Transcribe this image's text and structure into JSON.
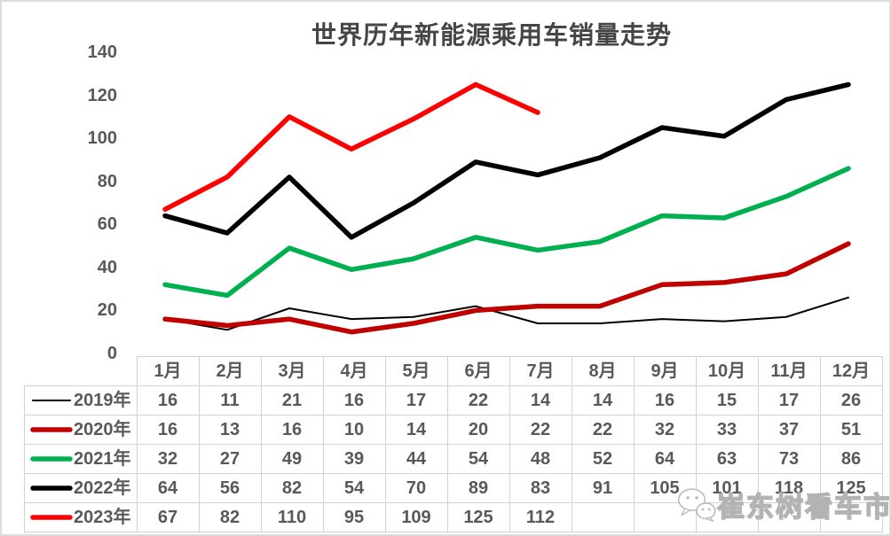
{
  "title": "世界历年新能源乘用车销量走势",
  "chart_data": {
    "type": "line",
    "title": "世界历年新能源乘用车销量走势",
    "categories": [
      "1月",
      "2月",
      "3月",
      "4月",
      "5月",
      "6月",
      "7月",
      "8月",
      "9月",
      "10月",
      "11月",
      "12月"
    ],
    "series": [
      {
        "key": "2019",
        "name": "2019年",
        "color": "#000000",
        "stroke_width": 2,
        "values": [
          16,
          11,
          21,
          16,
          17,
          22,
          14,
          14,
          16,
          15,
          17,
          26
        ]
      },
      {
        "key": "2020",
        "name": "2020年",
        "color": "#C00000",
        "stroke_width": 5.5,
        "values": [
          16,
          13,
          16,
          10,
          14,
          20,
          22,
          22,
          32,
          33,
          37,
          51
        ]
      },
      {
        "key": "2021",
        "name": "2021年",
        "color": "#00B050",
        "stroke_width": 5.5,
        "values": [
          32,
          27,
          49,
          39,
          44,
          54,
          48,
          52,
          64,
          63,
          73,
          86
        ]
      },
      {
        "key": "2022",
        "name": "2022年",
        "color": "#000000",
        "stroke_width": 5.5,
        "values": [
          64,
          56,
          82,
          54,
          70,
          89,
          83,
          91,
          105,
          101,
          118,
          125
        ]
      },
      {
        "key": "2023",
        "name": "2023年",
        "color": "#FF0000",
        "stroke_width": 5.5,
        "values": [
          67,
          82,
          110,
          95,
          109,
          125,
          112,
          null,
          null,
          null,
          null,
          null
        ]
      }
    ],
    "xlabel": "",
    "ylabel": "",
    "ylim": [
      0,
      140
    ],
    "yticks": [
      0,
      20,
      40,
      60,
      80,
      100,
      120,
      140
    ],
    "grid": false,
    "legend_position": "table-left-column"
  },
  "watermark": {
    "label": "崔东树看车市",
    "icon": "wechat-bubbles",
    "text_color": "#ffffff",
    "outline_color": "#b3b3b3"
  },
  "styles": {
    "text_color": "#595959",
    "title_color": "#454545",
    "grid_border_color": "#d2d2d2"
  }
}
